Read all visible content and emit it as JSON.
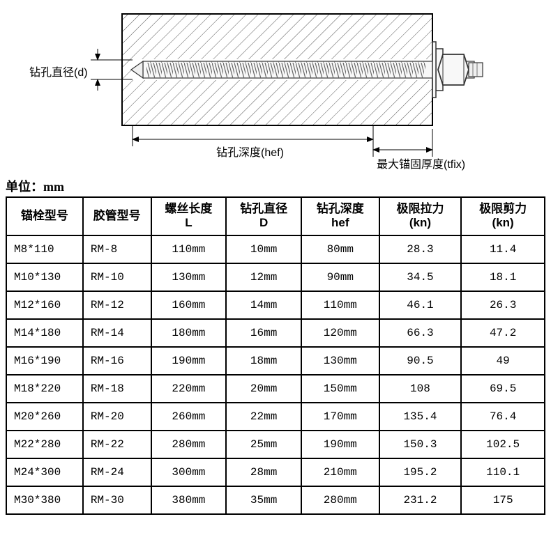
{
  "diagram": {
    "label_d": "钻孔直径(d)",
    "label_hef": "钻孔深度(hef)",
    "label_tfix": "最大锚固厚度(tfix)",
    "colors": {
      "outline": "#000000",
      "hatch": "#555555",
      "bolt_fill": "#f8f8f8",
      "bolt_stroke": "#333333",
      "dim_line": "#000000"
    }
  },
  "unit_label": "单位：mm",
  "table": {
    "columns": [
      "锚栓型号",
      "胶管型号",
      "螺丝长度\nL",
      "钻孔直径\nD",
      "钻孔深度\nhef",
      "极限拉力\n(kn)",
      "极限剪力\n(kn)"
    ],
    "rows": [
      [
        "M8*110",
        "RM-8",
        "110mm",
        "10mm",
        "80mm",
        "28.3",
        "11.4"
      ],
      [
        "M10*130",
        "RM-10",
        "130mm",
        "12mm",
        "90mm",
        "34.5",
        "18.1"
      ],
      [
        "M12*160",
        "RM-12",
        "160mm",
        "14mm",
        "110mm",
        "46.1",
        "26.3"
      ],
      [
        "M14*180",
        "RM-14",
        "180mm",
        "16mm",
        "120mm",
        "66.3",
        "47.2"
      ],
      [
        "M16*190",
        "RM-16",
        "190mm",
        "18mm",
        "130mm",
        "90.5",
        "49"
      ],
      [
        "M18*220",
        "RM-18",
        "220mm",
        "20mm",
        "150mm",
        "108",
        "69.5"
      ],
      [
        "M20*260",
        "RM-20",
        "260mm",
        "22mm",
        "170mm",
        "135.4",
        "76.4"
      ],
      [
        "M22*280",
        "RM-22",
        "280mm",
        "25mm",
        "190mm",
        "150.3",
        "102.5"
      ],
      [
        "M24*300",
        "RM-24",
        "300mm",
        "28mm",
        "210mm",
        "195.2",
        "110.1"
      ],
      [
        "M30*380",
        "RM-30",
        "380mm",
        "35mm",
        "280mm",
        "231.2",
        "175"
      ]
    ],
    "column_align": [
      "left",
      "left",
      "center",
      "center",
      "center",
      "center",
      "center"
    ]
  }
}
